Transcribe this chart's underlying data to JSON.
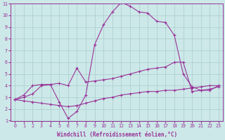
{
  "background_color": "#cce8e8",
  "grid_color": "#aacccc",
  "line_color": "#993399",
  "xlabel": "Windchill (Refroidissement éolien,°C)",
  "xlim": [
    -0.5,
    23.5
  ],
  "ylim": [
    1,
    11
  ],
  "yticks": [
    1,
    2,
    3,
    4,
    5,
    6,
    7,
    8,
    9,
    10,
    11
  ],
  "xticks": [
    0,
    1,
    2,
    3,
    4,
    5,
    6,
    7,
    8,
    9,
    10,
    11,
    12,
    13,
    14,
    15,
    16,
    17,
    18,
    19,
    20,
    21,
    22,
    23
  ],
  "line1_x": [
    0,
    1,
    2,
    3,
    4,
    5,
    6,
    7,
    8,
    9,
    10,
    11,
    12,
    13,
    14,
    15,
    16,
    17,
    18,
    19,
    20,
    21,
    22,
    23
  ],
  "line1_y": [
    2.8,
    3.2,
    4.0,
    4.1,
    4.1,
    2.6,
    1.2,
    1.8,
    3.2,
    7.5,
    9.2,
    10.3,
    11.1,
    10.8,
    10.3,
    10.2,
    9.5,
    9.4,
    8.3,
    5.0,
    3.9,
    3.6,
    3.6,
    4.0
  ],
  "line2_x": [
    0,
    1,
    2,
    3,
    4,
    5,
    6,
    7,
    8,
    9,
    10,
    11,
    12,
    13,
    14,
    15,
    16,
    17,
    18,
    19,
    20,
    21,
    22,
    23
  ],
  "line2_y": [
    2.8,
    3.0,
    3.3,
    4.0,
    4.1,
    4.2,
    4.0,
    5.5,
    4.3,
    4.4,
    4.5,
    4.6,
    4.8,
    5.0,
    5.2,
    5.4,
    5.5,
    5.6,
    6.0,
    6.0,
    3.5,
    3.6,
    3.7,
    3.9
  ],
  "line3_x": [
    0,
    1,
    2,
    3,
    4,
    5,
    6,
    7,
    8,
    9,
    10,
    11,
    12,
    13,
    14,
    15,
    16,
    17,
    18,
    19,
    20,
    21,
    22,
    23
  ],
  "line3_y": [
    2.8,
    2.7,
    2.6,
    2.5,
    2.4,
    2.3,
    2.2,
    2.3,
    2.5,
    2.7,
    2.9,
    3.0,
    3.2,
    3.3,
    3.4,
    3.5,
    3.5,
    3.6,
    3.6,
    3.7,
    3.8,
    3.9,
    4.0,
    4.0
  ]
}
